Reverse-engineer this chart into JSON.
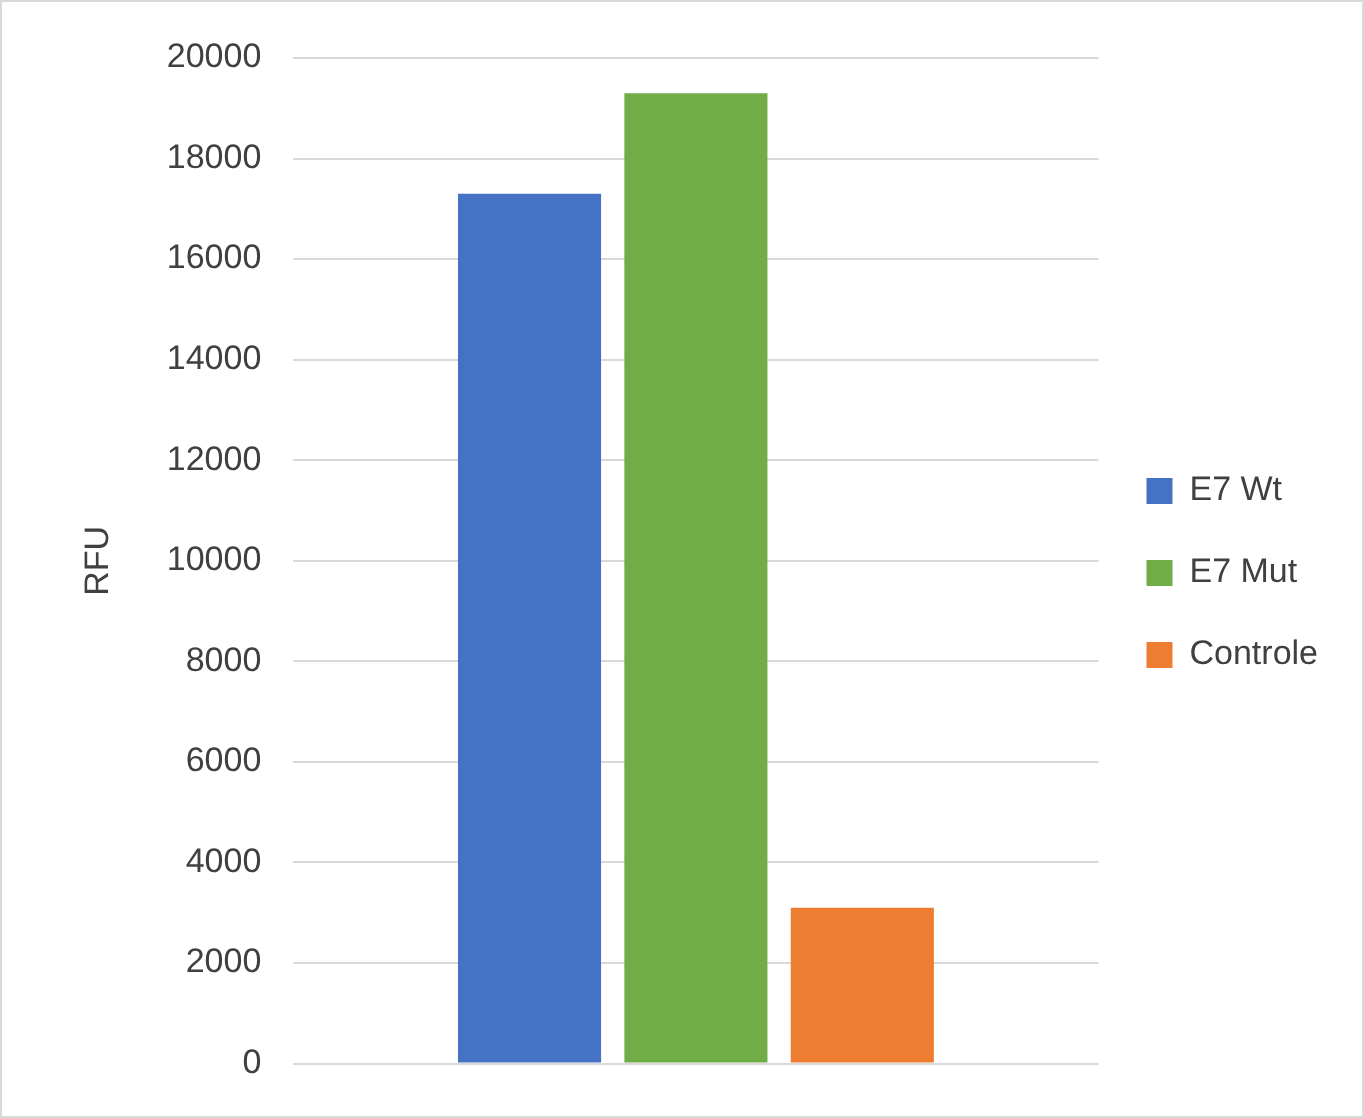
{
  "chart_data": {
    "type": "bar",
    "ylabel": "RFU",
    "categories": [
      null
    ],
    "series": [
      {
        "name": "E7 Wt",
        "color": "#4472c4",
        "values": [
          17300
        ]
      },
      {
        "name": "E7 Mut",
        "color": "#70ad47",
        "values": [
          19300
        ]
      },
      {
        "name": "Controle",
        "color": "#ed7d31",
        "values": [
          3100
        ]
      }
    ],
    "ylim": [
      0,
      20000
    ],
    "yticks": [
      0,
      2000,
      4000,
      6000,
      8000,
      10000,
      12000,
      14000,
      16000,
      18000,
      20000
    ],
    "grid": "y",
    "legend": "right"
  }
}
